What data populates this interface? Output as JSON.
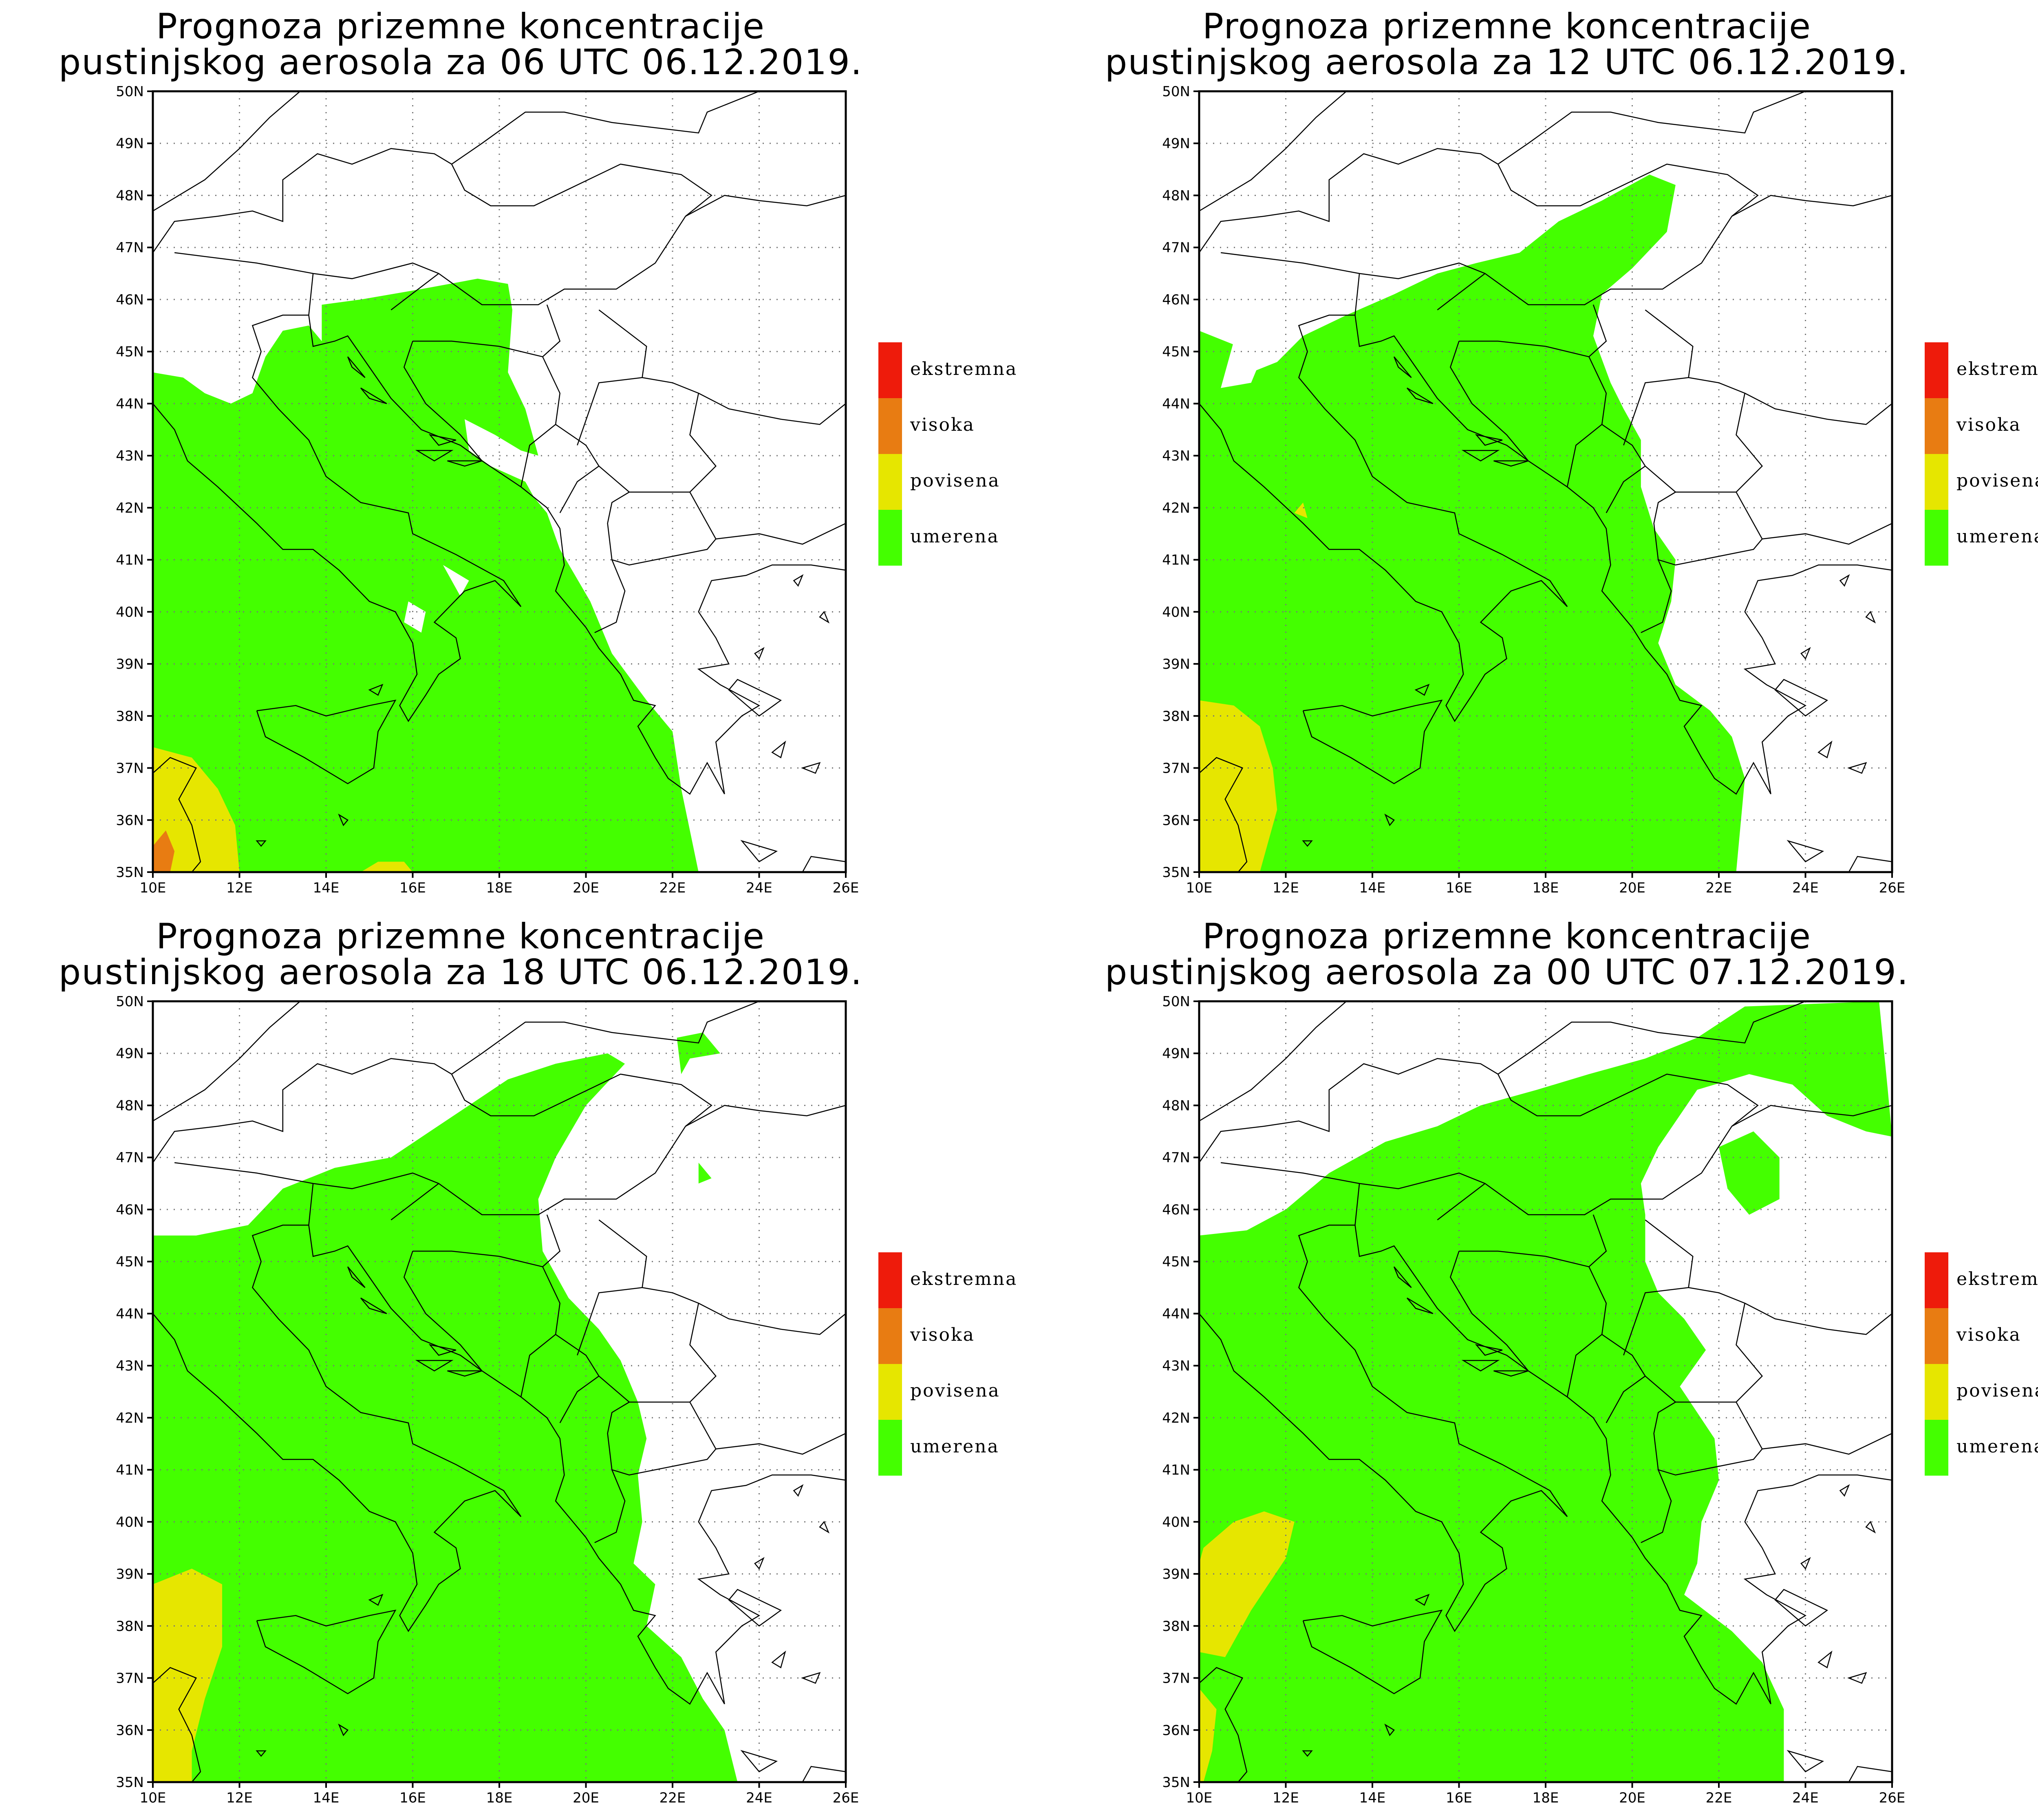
{
  "colors": {
    "umerena": "#44ff00",
    "povisena": "#e6e600",
    "visoka": "#e87c12",
    "ekstremna": "#ee1b0b",
    "border": "#000000",
    "grid": "#777777"
  },
  "legend": [
    {
      "label": "ekstremna",
      "color_key": "ekstremna"
    },
    {
      "label": "visoka",
      "color_key": "visoka"
    },
    {
      "label": "povisena",
      "color_key": "povisena"
    },
    {
      "label": "umerena",
      "color_key": "umerena"
    }
  ],
  "axes": {
    "lon_range": [
      10,
      26
    ],
    "lat_range": [
      35,
      50
    ],
    "lon_ticks": [
      "10E",
      "12E",
      "14E",
      "16E",
      "18E",
      "20E",
      "22E",
      "24E",
      "26E"
    ],
    "lat_ticks": [
      "35N",
      "36N",
      "37N",
      "38N",
      "39N",
      "40N",
      "41N",
      "42N",
      "43N",
      "44N",
      "45N",
      "46N",
      "47N",
      "48N",
      "49N",
      "50N"
    ],
    "grid": "dotted"
  },
  "panels": [
    {
      "title_line1": "Prognoza prizemne koncentracije",
      "title_line2": "pustinjskog aerosola za 06 UTC 06.12.2019."
    },
    {
      "title_line1": "Prognoza prizemne koncentracije",
      "title_line2": "pustinjskog aerosola za 12 UTC 06.12.2019."
    },
    {
      "title_line1": "Prognoza prizemne koncentracije",
      "title_line2": "pustinjskog aerosola za 18 UTC 06.12.2019."
    },
    {
      "title_line1": "Prognoza prizemne koncentracije",
      "title_line2": "pustinjskog aerosola za 00 UTC 07.12.2019."
    }
  ]
}
